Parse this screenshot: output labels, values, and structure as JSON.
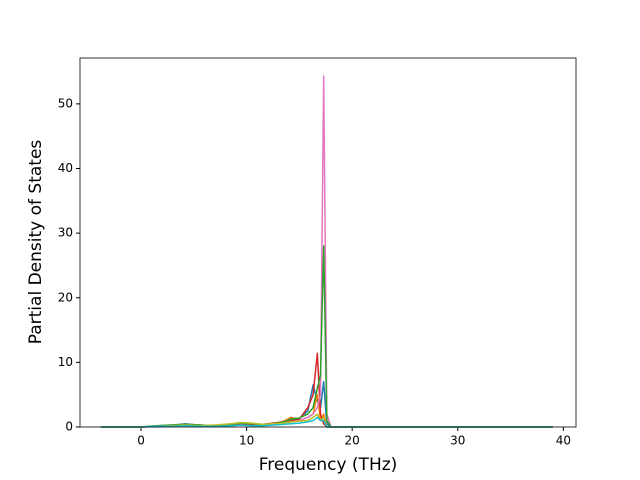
{
  "chart_data": {
    "type": "line",
    "xlabel": "Frequency (THz)",
    "ylabel": "Partial Density of States",
    "x": [
      -3.8,
      0,
      1.5,
      3,
      4.2,
      5.5,
      7,
      8.5,
      9.5,
      10.5,
      11.5,
      12.5,
      13.5,
      14.2,
      15,
      15.8,
      16.3,
      16.7,
      17.0,
      17.3,
      17.6,
      18,
      25,
      39
    ],
    "series": [
      {
        "color": "#1f77b4",
        "values": [
          0,
          0,
          0.2,
          0.3,
          0.5,
          0.3,
          0.2,
          0.3,
          0.4,
          0.3,
          0.4,
          0.5,
          0.7,
          1.4,
          1.3,
          2.5,
          6.5,
          4,
          3,
          7,
          0.5,
          0,
          0,
          0
        ]
      },
      {
        "color": "#ff7f0e",
        "values": [
          0,
          0,
          0.1,
          0.3,
          0.4,
          0.3,
          0.2,
          0.4,
          0.5,
          0.4,
          0.3,
          0.5,
          0.9,
          1.5,
          1.0,
          1.5,
          2,
          5,
          1,
          2,
          0,
          0,
          0,
          0
        ]
      },
      {
        "color": "#d62728",
        "values": [
          0,
          0,
          0.1,
          0.2,
          0.3,
          0.2,
          0.2,
          0.3,
          0.4,
          0.3,
          0.4,
          0.6,
          0.8,
          1.0,
          1.2,
          3,
          5,
          11.4,
          2,
          0.5,
          0,
          0,
          0,
          0
        ]
      },
      {
        "color": "#e377c2",
        "values": [
          0,
          0,
          0.1,
          0.2,
          0.3,
          0.2,
          0.1,
          0.2,
          0.3,
          0.2,
          0.3,
          0.4,
          0.6,
          0.8,
          1.0,
          1.5,
          2.0,
          3.0,
          5,
          54.3,
          2,
          0,
          0,
          0
        ]
      },
      {
        "color": "#2ca02c",
        "values": [
          0,
          0,
          0.2,
          0.3,
          0.4,
          0.3,
          0.2,
          0.4,
          0.6,
          0.5,
          0.4,
          0.5,
          0.8,
          1.2,
          1.4,
          2,
          3,
          6,
          8,
          28,
          1,
          0,
          0,
          0
        ]
      },
      {
        "color": "#bcbd22",
        "values": [
          0,
          0,
          0.1,
          0.2,
          0.3,
          0.2,
          0.3,
          0.5,
          0.7,
          0.6,
          0.4,
          0.5,
          0.6,
          0.8,
          0.9,
          1,
          1.5,
          2,
          1,
          1.5,
          0,
          0,
          0,
          0
        ]
      },
      {
        "color": "#17becf",
        "values": [
          0,
          0,
          0.1,
          0.1,
          0.2,
          0.1,
          0.1,
          0.2,
          0.3,
          0.2,
          0.2,
          0.3,
          0.4,
          0.5,
          0.6,
          0.8,
          1,
          1.5,
          1,
          1,
          0,
          0,
          0,
          0
        ]
      }
    ],
    "xlim": [
      -5.78,
      41.2
    ],
    "ylim": [
      0,
      57.1
    ],
    "xticks": [
      0,
      10,
      20,
      30,
      40
    ],
    "yticks": [
      0,
      10,
      20,
      30,
      40,
      50
    ],
    "grid": false
  }
}
